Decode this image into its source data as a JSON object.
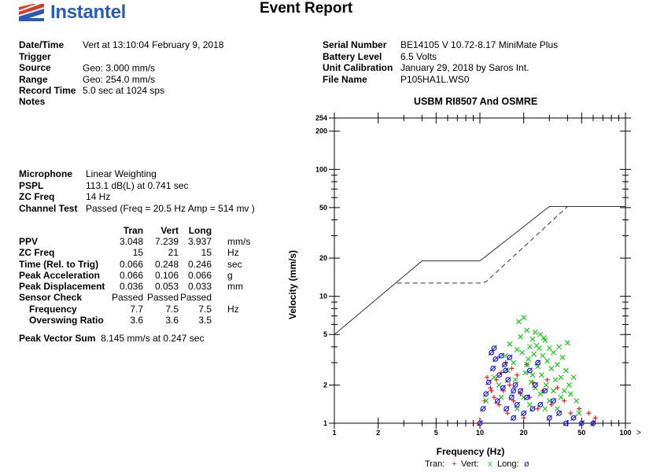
{
  "header": {
    "logo_text": "Instantel",
    "title": "Event Report"
  },
  "info_left": [
    {
      "label": "Date/Time",
      "value": "Vert at 13:10:04 February 9, 2018"
    },
    {
      "label": "Trigger Source",
      "value": "Geo: 3.000 mm/s"
    },
    {
      "label": "Range",
      "value": "Geo: 254.0 mm/s"
    },
    {
      "label": "Record Time",
      "value": "5.0 sec at 1024 sps"
    }
  ],
  "info_right": [
    {
      "label": "Serial Number",
      "value": "BE14105 V 10.72-8.17 MiniMate Plus"
    },
    {
      "label": "Battery Level",
      "value": "6.5 Volts"
    },
    {
      "label": "Unit Calibration",
      "value": "January 29, 2018 by Saros Int."
    },
    {
      "label": "File Name",
      "value": "P105HA1L.WS0"
    }
  ],
  "notes_label": "Notes",
  "mic_info": [
    {
      "label": "Microphone",
      "value": "Linear Weighting"
    },
    {
      "label": "PSPL",
      "value": "113.1 dB(L) at 0.741 sec"
    },
    {
      "label": "ZC Freq",
      "value": "14 Hz"
    },
    {
      "label": "Channel Test",
      "value": "Passed (Freq = 20.5 Hz Amp = 514 mv )"
    }
  ],
  "peaks": {
    "columns": [
      "Tran",
      "Vert",
      "Long"
    ],
    "rows": [
      {
        "label": "PPV",
        "values": [
          "3.048",
          "7.239",
          "3.937"
        ],
        "unit": "mm/s",
        "indent": false
      },
      {
        "label": "ZC Freq",
        "values": [
          "15",
          "21",
          "15"
        ],
        "unit": "Hz",
        "indent": false
      },
      {
        "label": "Time (Rel. to Trig)",
        "values": [
          "0.066",
          "0.248",
          "0.246"
        ],
        "unit": "sec",
        "indent": false
      },
      {
        "label": "Peak Acceleration",
        "values": [
          "0.066",
          "0.106",
          "0.066"
        ],
        "unit": "g",
        "indent": false
      },
      {
        "label": "Peak Displacement",
        "values": [
          "0.036",
          "0.053",
          "0.033"
        ],
        "unit": "mm",
        "indent": false
      },
      {
        "label": "Sensor Check",
        "values": [
          "Passed",
          "Passed",
          "Passed"
        ],
        "unit": "",
        "indent": false
      },
      {
        "label": "Frequency",
        "values": [
          "7.7",
          "7.5",
          "7.5"
        ],
        "unit": "Hz",
        "indent": true
      },
      {
        "label": "Overswing Ratio",
        "values": [
          "3.6",
          "3.6",
          "3.5"
        ],
        "unit": "",
        "indent": true
      }
    ]
  },
  "pvs": {
    "label": "Peak Vector Sum",
    "value": "8.145 mm/s at 0.247 sec"
  },
  "chart_data": {
    "type": "scatter",
    "title": "USBM RI8507 And OSMRE",
    "xlabel": "Frequency (Hz)",
    "ylabel": "Velocity (mm/s)",
    "x_scale": "log",
    "y_scale": "log",
    "xlim": [
      1,
      100
    ],
    "ylim": [
      1,
      254
    ],
    "x_ticks": [
      "1",
      "2",
      "5",
      "10",
      "20",
      "50",
      "100"
    ],
    "y_ticks": [
      "1",
      "2",
      "5",
      "10",
      "20",
      "50",
      "100",
      "200",
      "254"
    ],
    "x_arrow": ">",
    "legend": [
      {
        "name": "Tran:",
        "marker": "+",
        "color": "#e02020"
      },
      {
        "name": "Vert:",
        "marker": "x",
        "color": "#19c819"
      },
      {
        "name": "Long:",
        "marker": "ø",
        "color": "#1a1ad0"
      }
    ],
    "limit_lines": [
      {
        "style": "solid",
        "points": [
          [
            1,
            5
          ],
          [
            4,
            19
          ],
          [
            10,
            19
          ],
          [
            30,
            51
          ],
          [
            100,
            51
          ]
        ]
      },
      {
        "style": "dashed",
        "points": [
          [
            2.7,
            12.7
          ],
          [
            10,
            12.7
          ],
          [
            11,
            13
          ],
          [
            40,
            51
          ]
        ]
      }
    ],
    "series": [
      {
        "name": "Tran",
        "marker": "+",
        "color": "#e02020",
        "points": [
          [
            10,
            1
          ],
          [
            10.8,
            1.5
          ],
          [
            11.2,
            2.3
          ],
          [
            11.8,
            1.9
          ],
          [
            12.5,
            1.6
          ],
          [
            13,
            2.2
          ],
          [
            13.5,
            1.4
          ],
          [
            14,
            2.5
          ],
          [
            14.5,
            1.8
          ],
          [
            15,
            3.0
          ],
          [
            15.5,
            1.2
          ],
          [
            16,
            2.0
          ],
          [
            17,
            1.5
          ],
          [
            18,
            2.4
          ],
          [
            19,
            1.7
          ],
          [
            20,
            1.1
          ],
          [
            21,
            2.9
          ],
          [
            22,
            1.6
          ],
          [
            23,
            2.1
          ],
          [
            25,
            1.3
          ],
          [
            27,
            1.8
          ],
          [
            29,
            2.2
          ],
          [
            31,
            1.4
          ],
          [
            34,
            1.9
          ],
          [
            38,
            1.5
          ],
          [
            42,
            1.2
          ],
          [
            48,
            1.3
          ],
          [
            56,
            1.2
          ],
          [
            62,
            1.1
          ],
          [
            12,
            1.8
          ],
          [
            16.5,
            2.7
          ]
        ]
      },
      {
        "name": "Vert",
        "marker": "x",
        "color": "#19c819",
        "points": [
          [
            11,
            1.5
          ],
          [
            12.5,
            2.3
          ],
          [
            13.5,
            2.0
          ],
          [
            14,
            1.6
          ],
          [
            15,
            3.4
          ],
          [
            15.5,
            2.6
          ],
          [
            16,
            4.2
          ],
          [
            17,
            3.0
          ],
          [
            17.5,
            2.2
          ],
          [
            18,
            3.8
          ],
          [
            18.5,
            6.3
          ],
          [
            19,
            4.8
          ],
          [
            20,
            6.8
          ],
          [
            20.5,
            2.5
          ],
          [
            21,
            5.4
          ],
          [
            21.5,
            3.2
          ],
          [
            22,
            4.0
          ],
          [
            22.5,
            2.1
          ],
          [
            23,
            4.6
          ],
          [
            23.5,
            3.5
          ],
          [
            24,
            5.2
          ],
          [
            25,
            2.8
          ],
          [
            25.5,
            3.9
          ],
          [
            26,
            5.0
          ],
          [
            26.5,
            2.4
          ],
          [
            27,
            3.4
          ],
          [
            28,
            4.5
          ],
          [
            28.5,
            2.0
          ],
          [
            29,
            3.1
          ],
          [
            30,
            3.9
          ],
          [
            31,
            2.7
          ],
          [
            32,
            3.6
          ],
          [
            33,
            2.2
          ],
          [
            34,
            2.9
          ],
          [
            35,
            4.0
          ],
          [
            36,
            2.3
          ],
          [
            37,
            3.3
          ],
          [
            38,
            1.8
          ],
          [
            39,
            2.6
          ],
          [
            40,
            4.3
          ],
          [
            41,
            2.0
          ],
          [
            42,
            1.7
          ],
          [
            44,
            2.3
          ],
          [
            46,
            1.5
          ],
          [
            48,
            1.2
          ],
          [
            18,
            1.3
          ],
          [
            20,
            1.6
          ],
          [
            22,
            1.4
          ],
          [
            24,
            1.9
          ],
          [
            26,
            1.7
          ],
          [
            28,
            1.3
          ],
          [
            30,
            1.5
          ],
          [
            32,
            1.8
          ],
          [
            34,
            1.3
          ],
          [
            36,
            1.6
          ],
          [
            19.5,
            3.6
          ],
          [
            24.5,
            4.1
          ],
          [
            27.5,
            4.7
          ],
          [
            21,
            2.9
          ],
          [
            23,
            2.4
          ]
        ]
      },
      {
        "name": "Long",
        "marker": "ø",
        "color": "#1a1ad0",
        "points": [
          [
            10,
            1
          ],
          [
            10.5,
            1.3
          ],
          [
            11,
            1.7
          ],
          [
            11.5,
            2.1
          ],
          [
            12,
            3.6
          ],
          [
            12.3,
            2.7
          ],
          [
            12.8,
            3.2
          ],
          [
            13.2,
            1.5
          ],
          [
            13.6,
            2.4
          ],
          [
            14,
            3.4
          ],
          [
            14.4,
            1.9
          ],
          [
            14.8,
            2.9
          ],
          [
            15.2,
            1.3
          ],
          [
            15.6,
            2.2
          ],
          [
            16,
            3.3
          ],
          [
            16.5,
            1.6
          ],
          [
            17,
            1.1
          ],
          [
            17.5,
            2.0
          ],
          [
            18,
            1.4
          ],
          [
            19,
            1.8
          ],
          [
            20,
            1.2
          ],
          [
            21,
            1.6
          ],
          [
            22,
            2.6
          ],
          [
            23,
            1.3
          ],
          [
            24,
            2.0
          ],
          [
            25,
            3.0
          ],
          [
            26,
            1.4
          ],
          [
            28,
            1.8
          ],
          [
            30,
            1.1
          ],
          [
            32,
            1.5
          ],
          [
            35,
            1.2
          ],
          [
            39,
            1.0
          ],
          [
            44,
            1.1
          ],
          [
            50,
            1.0
          ],
          [
            60,
            1.0
          ],
          [
            12.5,
            3.9
          ],
          [
            15,
            2.6
          ],
          [
            17,
            1.8
          ]
        ]
      }
    ]
  }
}
